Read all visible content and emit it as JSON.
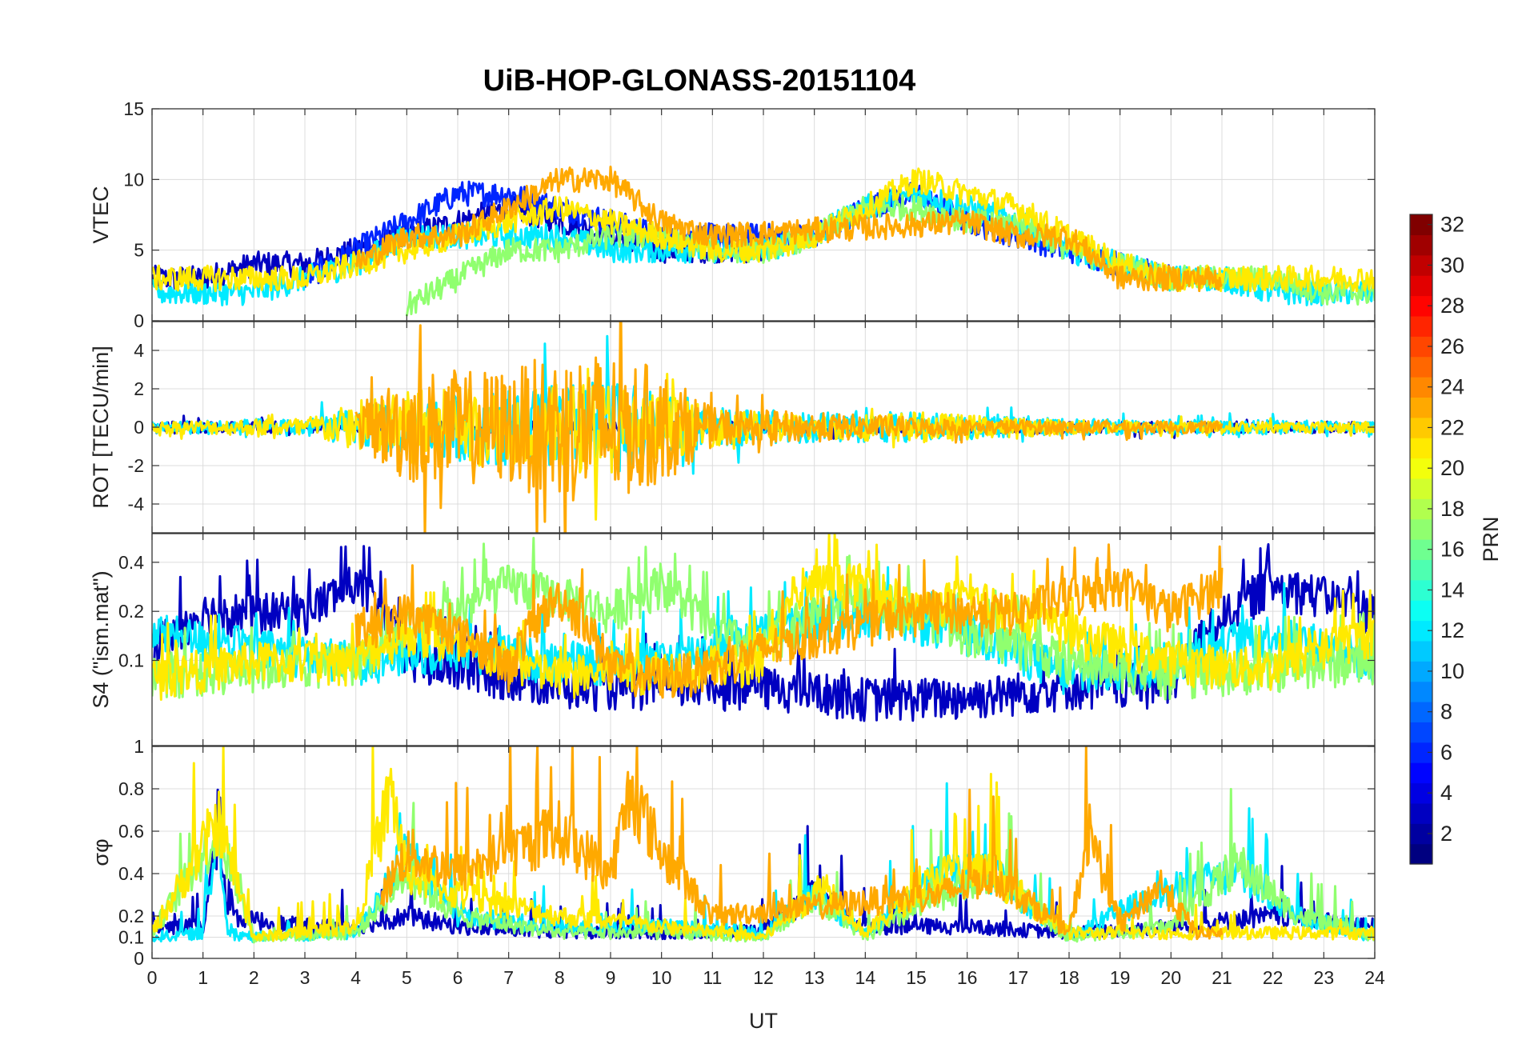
{
  "chart_data": {
    "type": "line",
    "title": "UiB-HOP-GLONASS-20151104",
    "xlabel": "UT",
    "xlim": [
      0,
      24
    ],
    "xticks": [
      0,
      1,
      2,
      3,
      4,
      5,
      6,
      7,
      8,
      9,
      10,
      11,
      12,
      13,
      14,
      15,
      16,
      17,
      18,
      19,
      20,
      21,
      22,
      23,
      24
    ],
    "grid": true,
    "colorbar": {
      "label": "PRN",
      "range": [
        1,
        32
      ],
      "ticks": [
        2,
        4,
        6,
        8,
        10,
        12,
        14,
        16,
        18,
        20,
        22,
        24,
        26,
        28,
        30,
        32
      ],
      "colormap": "jet"
    },
    "panels": [
      {
        "ylabel": "VTEC",
        "ylim": [
          0,
          15
        ],
        "yticks": [
          0,
          5,
          10,
          15
        ],
        "ytick_labels": [
          "0",
          "5",
          "10",
          "15"
        ],
        "series": [
          {
            "prn": 3,
            "x": [
              0,
              1,
              2,
              3,
              4,
              5,
              6,
              7,
              8,
              9,
              10,
              11,
              12
            ],
            "y": [
              3,
              3,
              4,
              4,
              5,
              6,
              7,
              8,
              7,
              6,
              5,
              5,
              5
            ]
          },
          {
            "prn": 6,
            "x": [
              3,
              4,
              5,
              6,
              7,
              8,
              9,
              10,
              11,
              12,
              13,
              14,
              15,
              16,
              17,
              18,
              19,
              20
            ],
            "y": [
              3,
              5,
              7,
              9,
              9,
              8,
              7,
              6,
              6,
              6,
              6,
              8,
              9,
              7,
              6,
              5,
              4,
              3
            ]
          },
          {
            "prn": 12,
            "x": [
              0,
              1,
              2,
              3,
              4,
              5,
              6,
              7,
              8,
              9,
              10,
              11,
              12,
              13,
              14,
              15,
              16,
              17,
              18,
              19,
              20,
              21,
              22,
              23,
              24
            ],
            "y": [
              2,
              2,
              2,
              3,
              4,
              6,
              6,
              6,
              6,
              5,
              5,
              5,
              5,
              6,
              8,
              9,
              8,
              7,
              5,
              4,
              3,
              3,
              2,
              2,
              2
            ]
          },
          {
            "prn": 17,
            "x": [
              5,
              6,
              7,
              8,
              9,
              10,
              11,
              12,
              13,
              14,
              15,
              16,
              17,
              18,
              19,
              20,
              21,
              22,
              23,
              24
            ],
            "y": [
              1,
              3,
              5,
              5,
              6,
              6,
              5,
              5,
              6,
              8,
              8,
              7,
              7,
              5,
              4,
              3,
              3,
              3,
              2,
              2
            ]
          },
          {
            "prn": 21,
            "x": [
              0,
              1,
              2,
              3,
              4,
              5,
              6,
              7,
              8,
              9,
              10,
              11,
              12,
              13,
              14,
              15,
              16,
              17,
              18,
              19,
              20,
              21,
              22,
              23,
              24
            ],
            "y": [
              3,
              3,
              3,
              3,
              4,
              5,
              6,
              7,
              8,
              7,
              6,
              5,
              5,
              6,
              8,
              10,
              9,
              8,
              6,
              4,
              3,
              3,
              3,
              3,
              3
            ]
          },
          {
            "prn": 23,
            "x": [
              4,
              5,
              6,
              7,
              8,
              9,
              10,
              11,
              16,
              17,
              18,
              19,
              20,
              21
            ],
            "y": [
              4,
              6,
              6,
              8,
              10,
              10,
              7,
              6,
              7,
              6,
              6,
              3,
              3,
              3
            ]
          }
        ]
      },
      {
        "ylabel": "ROT [TECU/min]",
        "ylim": [
          -5.5,
          5.5
        ],
        "yticks": [
          -4,
          -2,
          0,
          2,
          4
        ],
        "ytick_labels": [
          "-4",
          "-2",
          "0",
          "2",
          "4"
        ],
        "series": [
          {
            "prn": 3,
            "x": [
              0,
              24
            ],
            "amp": [
              0.3,
              0.3
            ]
          },
          {
            "prn": 12,
            "x": [
              0,
              3,
              5,
              7,
              9,
              11,
              13,
              15,
              17,
              19,
              21,
              24
            ],
            "amp": [
              0.3,
              0.5,
              1.5,
              2,
              2.5,
              1,
              0.8,
              0.8,
              0.5,
              0.4,
              0.4,
              0.3
            ]
          },
          {
            "prn": 21,
            "x": [
              0,
              3,
              5,
              7,
              9,
              11,
              13,
              15,
              17,
              19,
              21,
              24
            ],
            "amp": [
              0.3,
              0.5,
              2,
              2,
              2.5,
              1,
              0.6,
              0.8,
              0.5,
              0.3,
              0.3,
              0.3
            ]
          },
          {
            "prn": 23,
            "x": [
              4,
              5,
              7,
              8,
              9,
              10,
              11,
              16,
              21
            ],
            "amp": [
              1,
              3,
              3,
              4,
              4,
              3,
              1,
              0.4,
              0.3
            ]
          }
        ]
      },
      {
        "ylabel": "S4 (\"ism.mat\")",
        "ylim": [
          0.03,
          0.6
        ],
        "scale": "log",
        "yticks": [
          0.1,
          0.2,
          0.4
        ],
        "ytick_labels": [
          "0.1",
          "0.2",
          "0.4"
        ],
        "series": [
          {
            "prn": 3,
            "x": [
              0,
              1,
              2,
              3,
              4,
              5,
              8,
              10,
              12,
              14,
              16,
              18,
              20,
              22,
              24
            ],
            "y": [
              0.12,
              0.2,
              0.2,
              0.2,
              0.3,
              0.1,
              0.07,
              0.07,
              0.07,
              0.06,
              0.06,
              0.07,
              0.07,
              0.3,
              0.2
            ]
          },
          {
            "prn": 12,
            "x": [
              0,
              2,
              4,
              6,
              8,
              10,
              12,
              14,
              16,
              18,
              20,
              22,
              24
            ],
            "y": [
              0.15,
              0.12,
              0.1,
              0.12,
              0.1,
              0.1,
              0.15,
              0.2,
              0.15,
              0.08,
              0.1,
              0.15,
              0.1
            ]
          },
          {
            "prn": 17,
            "x": [
              0,
              2,
              4,
              6,
              7,
              8,
              9,
              10,
              11,
              12,
              13,
              14,
              16,
              18,
              20,
              22,
              24
            ],
            "y": [
              0.08,
              0.09,
              0.1,
              0.2,
              0.3,
              0.25,
              0.2,
              0.3,
              0.15,
              0.12,
              0.2,
              0.25,
              0.15,
              0.1,
              0.08,
              0.09,
              0.1
            ]
          },
          {
            "prn": 21,
            "x": [
              0,
              2,
              4,
              5,
              6,
              8,
              10,
              12,
              13,
              14,
              15,
              16,
              18,
              20,
              22,
              24
            ],
            "y": [
              0.08,
              0.1,
              0.1,
              0.15,
              0.12,
              0.08,
              0.09,
              0.1,
              0.3,
              0.3,
              0.2,
              0.25,
              0.15,
              0.1,
              0.09,
              0.15
            ]
          },
          {
            "prn": 23,
            "x": [
              4,
              5,
              6,
              7,
              8,
              9,
              10,
              11,
              15,
              16,
              17,
              18,
              19,
              20,
              21
            ],
            "y": [
              0.15,
              0.2,
              0.15,
              0.09,
              0.25,
              0.09,
              0.08,
              0.09,
              0.2,
              0.2,
              0.2,
              0.25,
              0.3,
              0.2,
              0.3
            ]
          }
        ]
      },
      {
        "ylabel": "σφ",
        "ylim": [
          0,
          1
        ],
        "yticks": [
          0,
          0.1,
          0.2,
          0.4,
          0.6,
          0.8,
          1
        ],
        "ytick_labels": [
          "0",
          "0.1",
          "0.2",
          "0.4",
          "0.6",
          "0.8",
          "1"
        ],
        "series": [
          {
            "prn": 3,
            "x": [
              0,
              1,
              1.3,
              1.5,
              2,
              3,
              4,
              5,
              6,
              8,
              10,
              12,
              13,
              14,
              16,
              18,
              20,
              22,
              24
            ],
            "y": [
              0.15,
              0.15,
              0.6,
              0.2,
              0.18,
              0.15,
              0.15,
              0.2,
              0.15,
              0.12,
              0.12,
              0.13,
              0.3,
              0.15,
              0.15,
              0.12,
              0.15,
              0.2,
              0.15
            ]
          },
          {
            "prn": 12,
            "x": [
              0,
              1,
              1.3,
              1.5,
              2,
              4,
              5,
              6,
              8,
              10,
              12,
              13,
              14,
              15.5,
              16.5,
              18,
              19.7,
              21.3,
              22.5,
              24
            ],
            "y": [
              0.1,
              0.12,
              0.6,
              0.12,
              0.1,
              0.12,
              0.5,
              0.2,
              0.15,
              0.15,
              0.12,
              0.3,
              0.12,
              0.4,
              0.4,
              0.1,
              0.3,
              0.4,
              0.2,
              0.1
            ]
          },
          {
            "prn": 17,
            "x": [
              0,
              1.3,
              2,
              4,
              5,
              6,
              8,
              10,
              12,
              13,
              14,
              15.5,
              16.5,
              18,
              20,
              21.3,
              22.5,
              24
            ],
            "y": [
              0.12,
              0.6,
              0.1,
              0.12,
              0.4,
              0.2,
              0.12,
              0.12,
              0.1,
              0.3,
              0.1,
              0.3,
              0.4,
              0.1,
              0.15,
              0.45,
              0.2,
              0.1
            ]
          },
          {
            "prn": 21,
            "x": [
              0,
              1.3,
              2,
              4,
              4.7,
              5,
              6,
              8,
              10,
              12,
              13.2,
              14,
              15.5,
              16.5,
              18,
              20,
              24
            ],
            "y": [
              0.12,
              0.65,
              0.1,
              0.15,
              0.8,
              0.4,
              0.3,
              0.2,
              0.15,
              0.1,
              0.35,
              0.12,
              0.4,
              0.4,
              0.12,
              0.12,
              0.12
            ]
          },
          {
            "prn": 23,
            "x": [
              4.5,
              5,
              6,
              7,
              8,
              9,
              9.4,
              10,
              11,
              15.5,
              16.5,
              18,
              18.4,
              19,
              19.8,
              20.5,
              21
            ],
            "y": [
              0.3,
              0.5,
              0.4,
              0.5,
              0.6,
              0.4,
              0.8,
              0.5,
              0.2,
              0.3,
              0.4,
              0.12,
              0.6,
              0.15,
              0.35,
              0.12,
              0.12
            ]
          }
        ]
      }
    ]
  }
}
